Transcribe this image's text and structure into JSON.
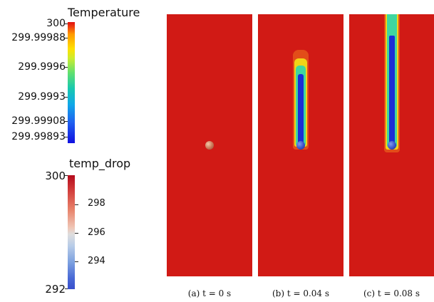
{
  "legend_temperature": {
    "title": "Temperature",
    "ticks": [
      "300",
      "299.99988",
      "299.9996",
      "299.9993",
      "299.99908",
      "299.99893"
    ]
  },
  "legend_temp_drop": {
    "title": "temp_drop",
    "max_label": "300",
    "min_label": "292",
    "ticks": [
      "298",
      "296",
      "294"
    ]
  },
  "panels": [
    {
      "caption": "(a) t = 0 s"
    },
    {
      "caption": "(b) t = 0.04 s"
    },
    {
      "caption": "(c) t = 0.08 s"
    }
  ],
  "colors": {
    "background_field": "#d11a15",
    "plume_core": "#1a2fd6",
    "plume_mid": "#2fd3a6",
    "plume_edge": "#ffe000"
  }
}
